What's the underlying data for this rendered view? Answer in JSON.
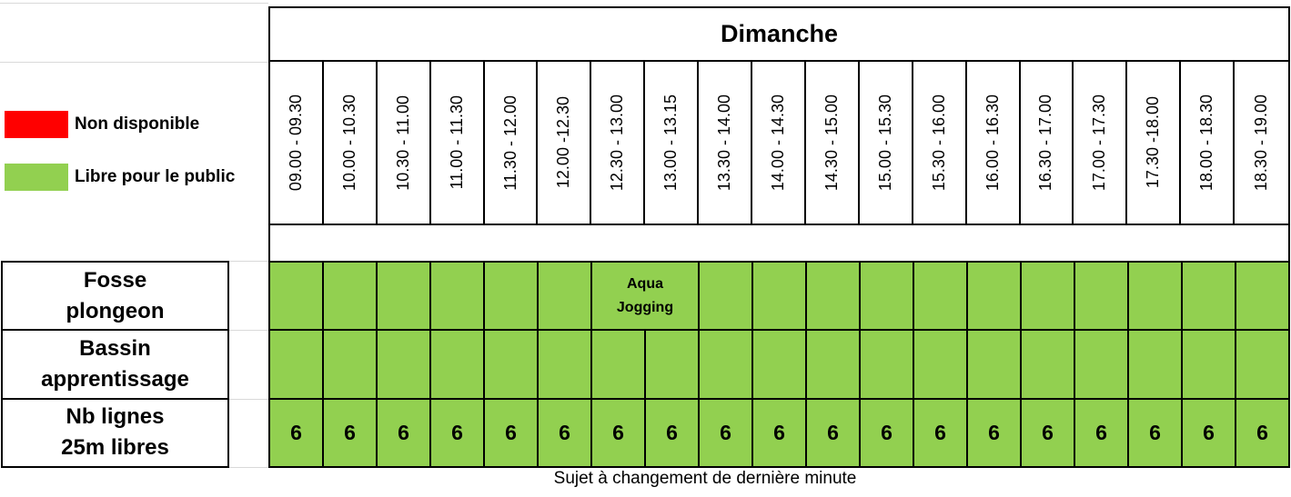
{
  "window": {
    "day_title": "Dimanche",
    "footer_note": "Sujet à changement de dernière minute"
  },
  "legend": {
    "items": [
      {
        "label": "Non disponible",
        "color": "#FF0000",
        "status": "non_disponible"
      },
      {
        "label": "Libre pour le public",
        "color": "#92D050",
        "status": "libre"
      }
    ]
  },
  "time_slots": [
    "09.00 - 09.30",
    "10.00 - 10.30",
    "10.30 - 11.00",
    "11.00 - 11.30",
    "11.30 - 12.00",
    "12.00 -12.30",
    "12.30 - 13.00",
    "13.00 - 13.15",
    "13.30 - 14.00",
    "14.00 - 14.30",
    "14.30 - 15.00",
    "15.00 - 15.30",
    "15.30 - 16.00",
    "16.00 - 16.30",
    "16.30 - 17.00",
    "17.00 - 17.30",
    "17.30 -18.00",
    "18.00 - 18.30",
    "18.30 - 19.00"
  ],
  "schedule": {
    "rows": [
      {
        "id": "fosse-plongeon",
        "label": [
          "Fosse",
          "plongeon"
        ],
        "cells": [
          {
            "span": 1,
            "status": "libre"
          },
          {
            "span": 1,
            "status": "libre"
          },
          {
            "span": 1,
            "status": "libre"
          },
          {
            "span": 1,
            "status": "libre"
          },
          {
            "span": 1,
            "status": "libre"
          },
          {
            "span": 1,
            "status": "libre"
          },
          {
            "span": 2,
            "status": "libre",
            "lines": [
              "Aqua",
              "Jogging"
            ]
          },
          {
            "span": 1,
            "status": "libre"
          },
          {
            "span": 1,
            "status": "libre"
          },
          {
            "span": 1,
            "status": "libre"
          },
          {
            "span": 1,
            "status": "libre"
          },
          {
            "span": 1,
            "status": "libre"
          },
          {
            "span": 1,
            "status": "libre"
          },
          {
            "span": 1,
            "status": "libre"
          },
          {
            "span": 1,
            "status": "libre"
          },
          {
            "span": 1,
            "status": "libre"
          },
          {
            "span": 1,
            "status": "libre"
          },
          {
            "span": 1,
            "status": "libre"
          }
        ]
      },
      {
        "id": "bassin-apprentissage",
        "label": [
          "Bassin",
          "apprentissage"
        ],
        "cells": [
          {
            "span": 1,
            "status": "libre"
          },
          {
            "span": 1,
            "status": "libre"
          },
          {
            "span": 1,
            "status": "libre"
          },
          {
            "span": 1,
            "status": "libre"
          },
          {
            "span": 1,
            "status": "libre"
          },
          {
            "span": 1,
            "status": "libre"
          },
          {
            "span": 1,
            "status": "libre"
          },
          {
            "span": 1,
            "status": "libre"
          },
          {
            "span": 1,
            "status": "libre"
          },
          {
            "span": 1,
            "status": "libre"
          },
          {
            "span": 1,
            "status": "libre"
          },
          {
            "span": 1,
            "status": "libre"
          },
          {
            "span": 1,
            "status": "libre"
          },
          {
            "span": 1,
            "status": "libre"
          },
          {
            "span": 1,
            "status": "libre"
          },
          {
            "span": 1,
            "status": "libre"
          },
          {
            "span": 1,
            "status": "libre"
          },
          {
            "span": 1,
            "status": "libre"
          },
          {
            "span": 1,
            "status": "libre"
          }
        ]
      },
      {
        "id": "nb-lignes-25m-libres",
        "label": [
          "Nb lignes",
          "25m libres"
        ],
        "cells": [
          {
            "span": 1,
            "status": "libre",
            "text": "6"
          },
          {
            "span": 1,
            "status": "libre",
            "text": "6"
          },
          {
            "span": 1,
            "status": "libre",
            "text": "6"
          },
          {
            "span": 1,
            "status": "libre",
            "text": "6"
          },
          {
            "span": 1,
            "status": "libre",
            "text": "6"
          },
          {
            "span": 1,
            "status": "libre",
            "text": "6"
          },
          {
            "span": 1,
            "status": "libre",
            "text": "6"
          },
          {
            "span": 1,
            "status": "libre",
            "text": "6"
          },
          {
            "span": 1,
            "status": "libre",
            "text": "6"
          },
          {
            "span": 1,
            "status": "libre",
            "text": "6"
          },
          {
            "span": 1,
            "status": "libre",
            "text": "6"
          },
          {
            "span": 1,
            "status": "libre",
            "text": "6"
          },
          {
            "span": 1,
            "status": "libre",
            "text": "6"
          },
          {
            "span": 1,
            "status": "libre",
            "text": "6"
          },
          {
            "span": 1,
            "status": "libre",
            "text": "6"
          },
          {
            "span": 1,
            "status": "libre",
            "text": "6"
          },
          {
            "span": 1,
            "status": "libre",
            "text": "6"
          },
          {
            "span": 1,
            "status": "libre",
            "text": "6"
          },
          {
            "span": 1,
            "status": "libre",
            "text": "6"
          }
        ]
      }
    ]
  },
  "colors": {
    "libre": "#92D050",
    "non_disponible": "#FF0000",
    "border": "#000000",
    "gridline": "#D9D9D9"
  }
}
